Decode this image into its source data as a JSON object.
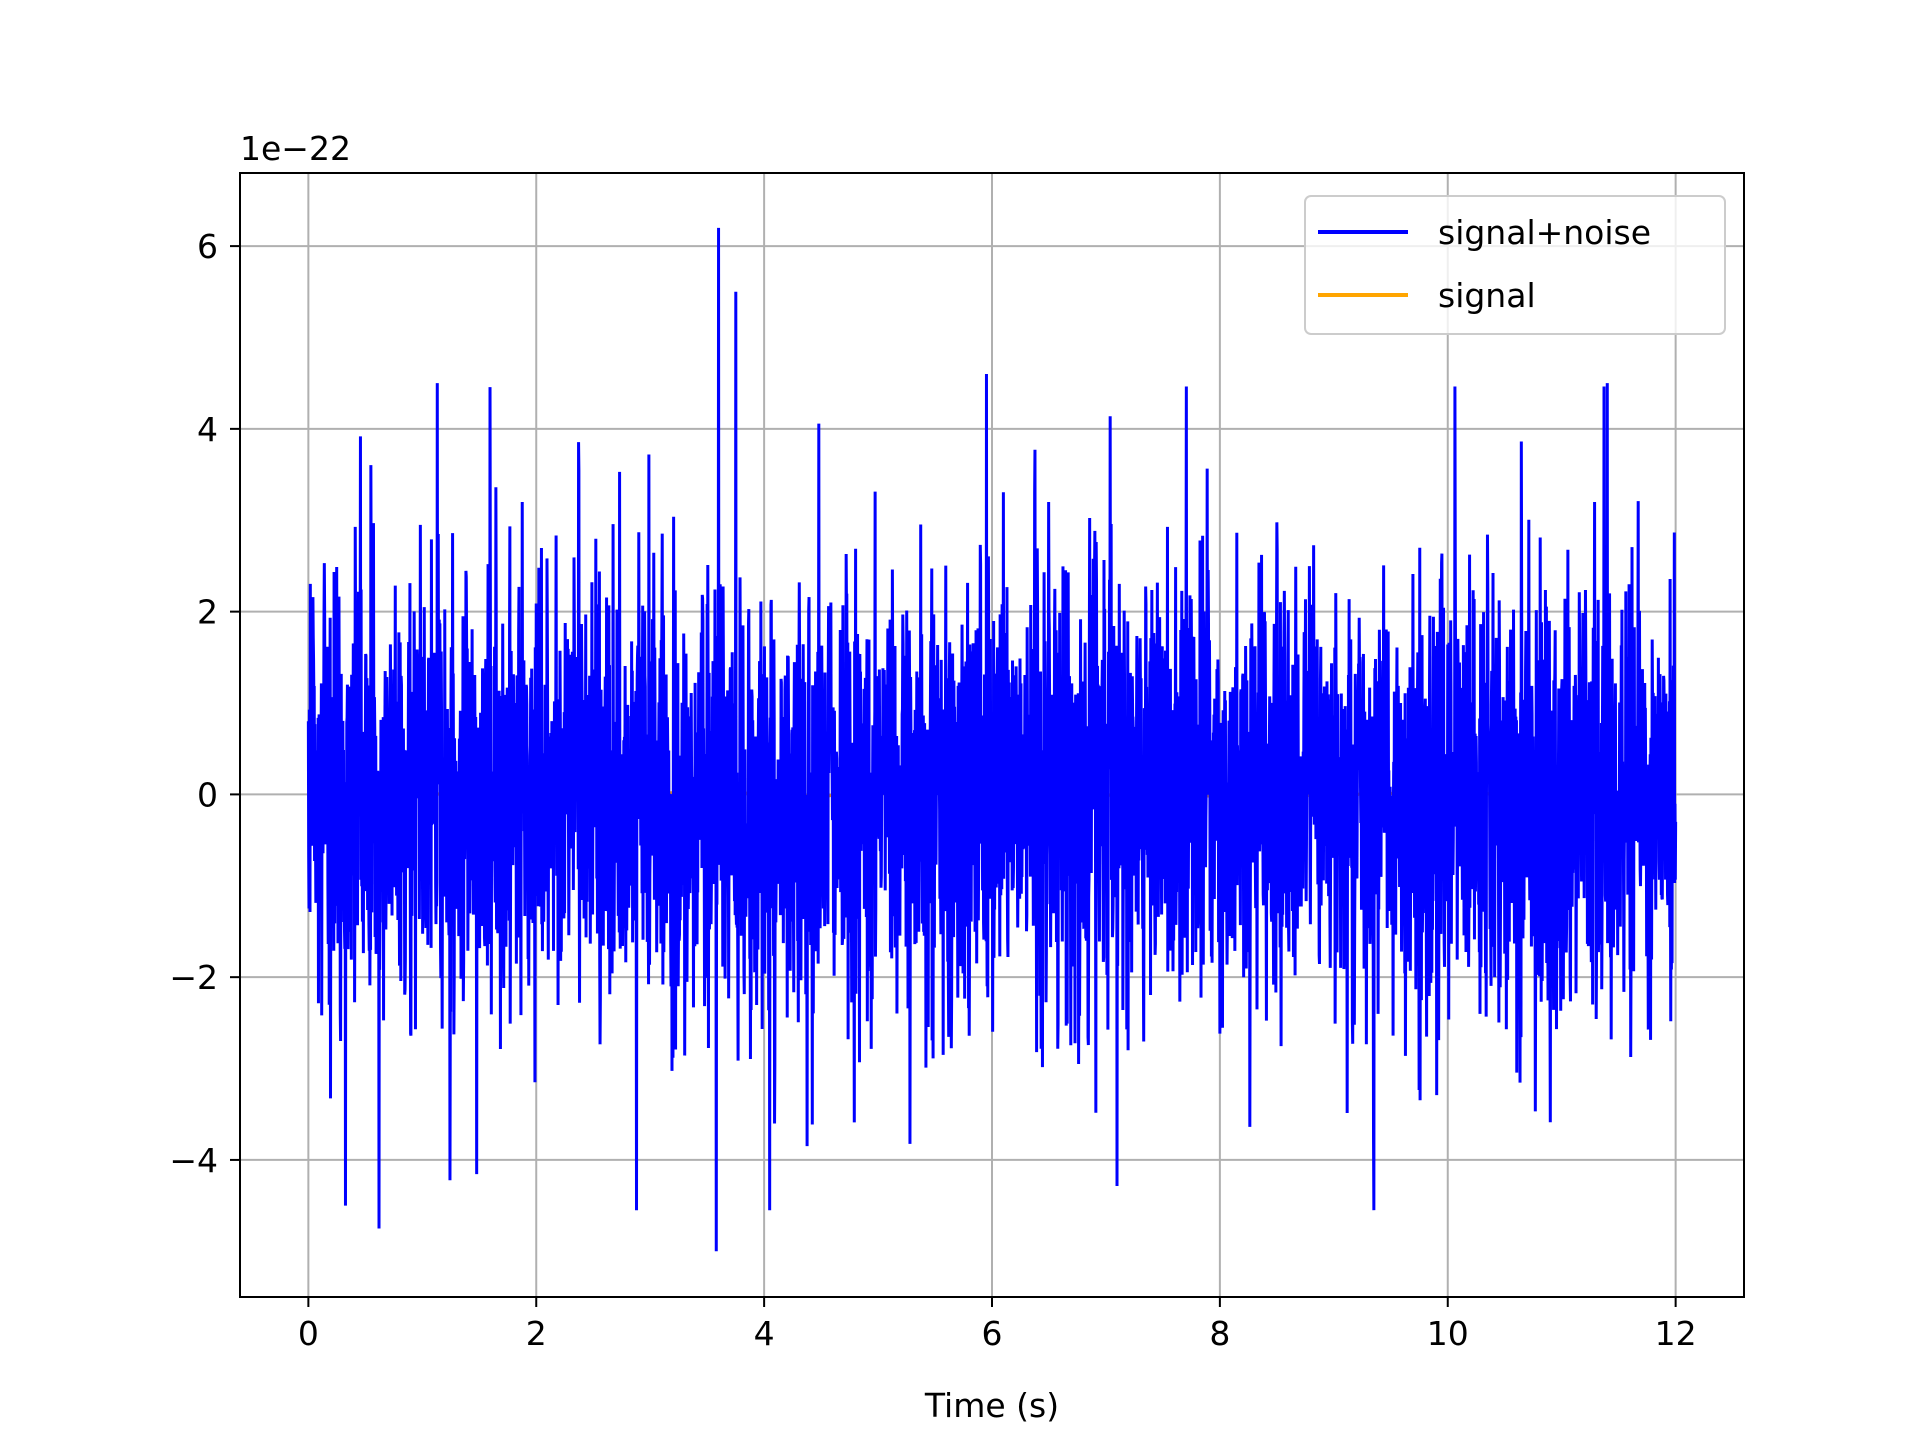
{
  "chart_data": {
    "type": "line",
    "title": "",
    "xlabel": "Time (s)",
    "ylabel": "",
    "y_offset_label": "1e−22",
    "xlim": [
      -0.6,
      12.6
    ],
    "ylim": [
      -5.5,
      6.8
    ],
    "x_ticks": [
      0,
      2,
      4,
      6,
      8,
      10,
      12
    ],
    "x_tick_labels": [
      "0",
      "2",
      "4",
      "6",
      "8",
      "10",
      "12"
    ],
    "y_ticks": [
      -4,
      -2,
      0,
      2,
      4,
      6
    ],
    "y_tick_labels": [
      "−4",
      "−2",
      "0",
      "2",
      "4",
      "6"
    ],
    "grid": true,
    "legend_position": "top-right",
    "series": [
      {
        "name": "signal+noise",
        "color": "#0000ff",
        "x_range": [
          0,
          12
        ],
        "y_range_observed": [
          -5.0,
          6.2
        ],
        "typical_amplitude": 1.5,
        "notable_peaks": [
          {
            "x": 3.6,
            "y": 6.2
          },
          {
            "x": 3.75,
            "y": 5.5
          },
          {
            "x": 1.13,
            "y": 4.5
          },
          {
            "x": 5.95,
            "y": 4.6
          },
          {
            "x": 11.4,
            "y": 4.5
          },
          {
            "x": 3.58,
            "y": -5.0
          },
          {
            "x": 0.62,
            "y": -4.75
          },
          {
            "x": 9.35,
            "y": -4.55
          },
          {
            "x": 4.05,
            "y": -4.55
          },
          {
            "x": 2.88,
            "y": -4.55
          }
        ]
      },
      {
        "name": "signal",
        "color": "#ffa500",
        "x_range": [
          0,
          12
        ],
        "values_note": "hidden behind signal+noise trace"
      }
    ]
  }
}
